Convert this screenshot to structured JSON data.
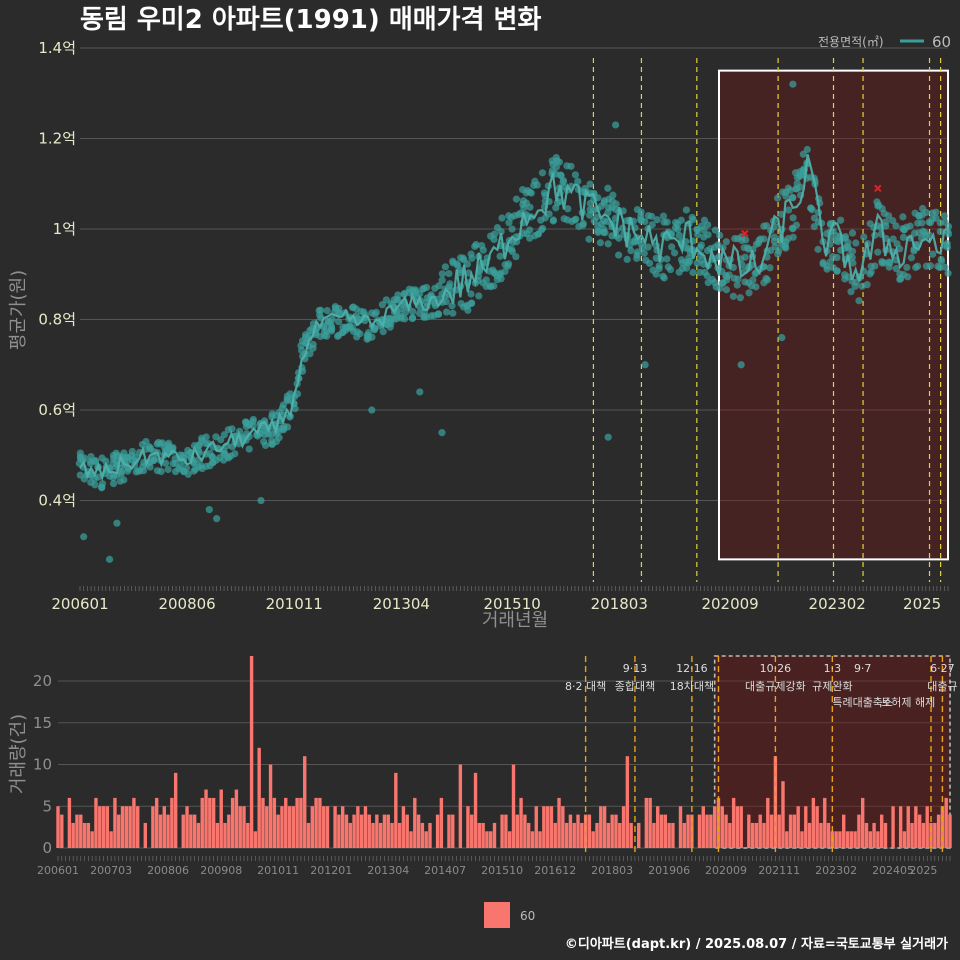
{
  "header": {
    "title": "동림 우미2 아파트(1991) 매매가격 변화",
    "legend_title": "전용면적(㎡)",
    "legend_label": "60",
    "bottom_legend_label": "60",
    "footer": "©디아파트(dapt.kr) / 2025.08.07 / 자료=국토교통부 실거래가"
  },
  "chart_data": [
    {
      "type": "scatter",
      "xlabel": "거래년월",
      "ylabel": "평균가(원)",
      "ylim": [
        0.22,
        1.4
      ],
      "y_ticks": [
        {
          "v": 0.4,
          "label": "0.4억"
        },
        {
          "v": 0.6,
          "label": "0.6억"
        },
        {
          "v": 0.8,
          "label": "0.8억"
        },
        {
          "v": 1.0,
          "label": "1억"
        },
        {
          "v": 1.2,
          "label": "1.2억"
        },
        {
          "v": 1.4,
          "label": "1.4억"
        }
      ],
      "x_range": [
        "2006-01",
        "2025-08"
      ],
      "x_ticks": [
        "200601",
        "200806",
        "201011",
        "201304",
        "201510",
        "201803",
        "202009",
        "202302",
        "2025"
      ],
      "series": [
        {
          "name": "60",
          "color": "#3a9e9a"
        }
      ],
      "trend": [
        [
          "2006-01",
          0.47
        ],
        [
          "2006-06",
          0.46
        ],
        [
          "2007-01",
          0.48
        ],
        [
          "2007-08",
          0.5
        ],
        [
          "2008-06",
          0.49
        ],
        [
          "2009-03",
          0.52
        ],
        [
          "2010-01",
          0.55
        ],
        [
          "2010-06",
          0.56
        ],
        [
          "2010-11",
          0.62
        ],
        [
          "2011-01",
          0.72
        ],
        [
          "2011-06",
          0.79
        ],
        [
          "2012-01",
          0.8
        ],
        [
          "2012-08",
          0.79
        ],
        [
          "2013-04",
          0.83
        ],
        [
          "2014-01",
          0.84
        ],
        [
          "2014-08",
          0.88
        ],
        [
          "2015-04",
          0.92
        ],
        [
          "2015-10",
          1.0
        ],
        [
          "2016-04",
          1.05
        ],
        [
          "2016-10",
          1.09
        ],
        [
          "2017-04",
          1.06
        ],
        [
          "2017-10",
          1.03
        ],
        [
          "2018-03",
          1.01
        ],
        [
          "2018-08",
          0.99
        ],
        [
          "2019-03",
          0.96
        ],
        [
          "2019-10",
          0.98
        ],
        [
          "2020-04",
          0.94
        ],
        [
          "2020-09",
          0.92
        ],
        [
          "2021-04",
          0.91
        ],
        [
          "2021-10",
          1.0
        ],
        [
          "2022-03",
          1.06
        ],
        [
          "2022-06",
          1.14
        ],
        [
          "2022-10",
          0.98
        ],
        [
          "2023-02",
          0.97
        ],
        [
          "2023-08",
          0.9
        ],
        [
          "2024-01",
          0.99
        ],
        [
          "2024-06",
          0.95
        ],
        [
          "2025-01",
          0.98
        ],
        [
          "2025-08",
          0.96
        ]
      ],
      "outliers": [
        [
          "2006-02",
          0.32
        ],
        [
          "2006-09",
          0.27
        ],
        [
          "2006-11",
          0.35
        ],
        [
          "2008-12",
          0.38
        ],
        [
          "2009-02",
          0.36
        ],
        [
          "2010-02",
          0.4
        ],
        [
          "2012-08",
          0.6
        ],
        [
          "2013-09",
          0.64
        ],
        [
          "2014-03",
          0.55
        ],
        [
          "2017-12",
          0.54
        ],
        [
          "2018-10",
          0.7
        ],
        [
          "2020-12",
          0.7
        ],
        [
          "2022-02",
          1.32
        ],
        [
          "2021-11",
          0.76
        ],
        [
          "2015-07",
          0.89
        ],
        [
          "2018-02",
          1.23
        ]
      ],
      "highlight_points": [
        [
          "2021-01",
          0.99
        ],
        [
          "2024-01",
          1.09
        ]
      ],
      "policy_lines": [
        "2017-08",
        "2018-09",
        "2019-12",
        "2021-10",
        "2023-01",
        "2023-09",
        "2025-03",
        "2025-06"
      ],
      "highlight_box": {
        "x": [
          "2020-06",
          "2025-08"
        ],
        "y": [
          0.27,
          1.35
        ]
      }
    },
    {
      "type": "bar",
      "xlabel": "",
      "ylabel": "거래량(건)",
      "ylim": [
        0,
        23
      ],
      "y_ticks": [
        0,
        5,
        10,
        15,
        20
      ],
      "x_ticks": [
        "200601",
        "200703",
        "200806",
        "200908",
        "201011",
        "201201",
        "201304",
        "201407",
        "201510",
        "201612",
        "201803",
        "201906",
        "202009",
        "202111",
        "202302",
        "202405",
        "2025"
      ],
      "series": [
        {
          "name": "60",
          "color": "#f8766d"
        }
      ],
      "peaks": [
        [
          "2010-04",
          23
        ],
        [
          "2010-06",
          12
        ],
        [
          "2011-06",
          11
        ],
        [
          "2010-09",
          10
        ],
        [
          "2018-07",
          11
        ],
        [
          "2021-10",
          11
        ],
        [
          "2014-11",
          10
        ],
        [
          "2016-01",
          10
        ],
        [
          "2008-08",
          9
        ],
        [
          "2021-12",
          8
        ],
        [
          "2013-06",
          9
        ],
        [
          "2015-03",
          9
        ]
      ],
      "policy_lines": [
        "2017-08",
        "2018-09",
        "2019-12",
        "2020-07",
        "2021-10",
        "2023-01",
        "2025-03",
        "2025-06"
      ],
      "policies": [
        {
          "x": "2017-08",
          "date": "",
          "name": "8·2 대책"
        },
        {
          "x": "2018-09",
          "date": "9·13",
          "name": "종합대책"
        },
        {
          "x": "2019-12",
          "date": "12·16",
          "name": "18차대책"
        },
        {
          "x": "2021-10",
          "date": "10·26",
          "name": "대출규제강화"
        },
        {
          "x": "2023-01",
          "date": "1·3",
          "name": "규제완화"
        },
        {
          "x": "2023-09",
          "date": "9·7",
          "name": "특례대출축소"
        },
        {
          "x": "2024-09",
          "date": "",
          "name": "토허제 해제"
        },
        {
          "x": "2025-06",
          "date": "6·27",
          "name": "대출규"
        }
      ],
      "highlight_box": {
        "x": [
          "2020-06",
          "2025-08"
        ],
        "y": [
          0,
          23
        ]
      }
    }
  ]
}
